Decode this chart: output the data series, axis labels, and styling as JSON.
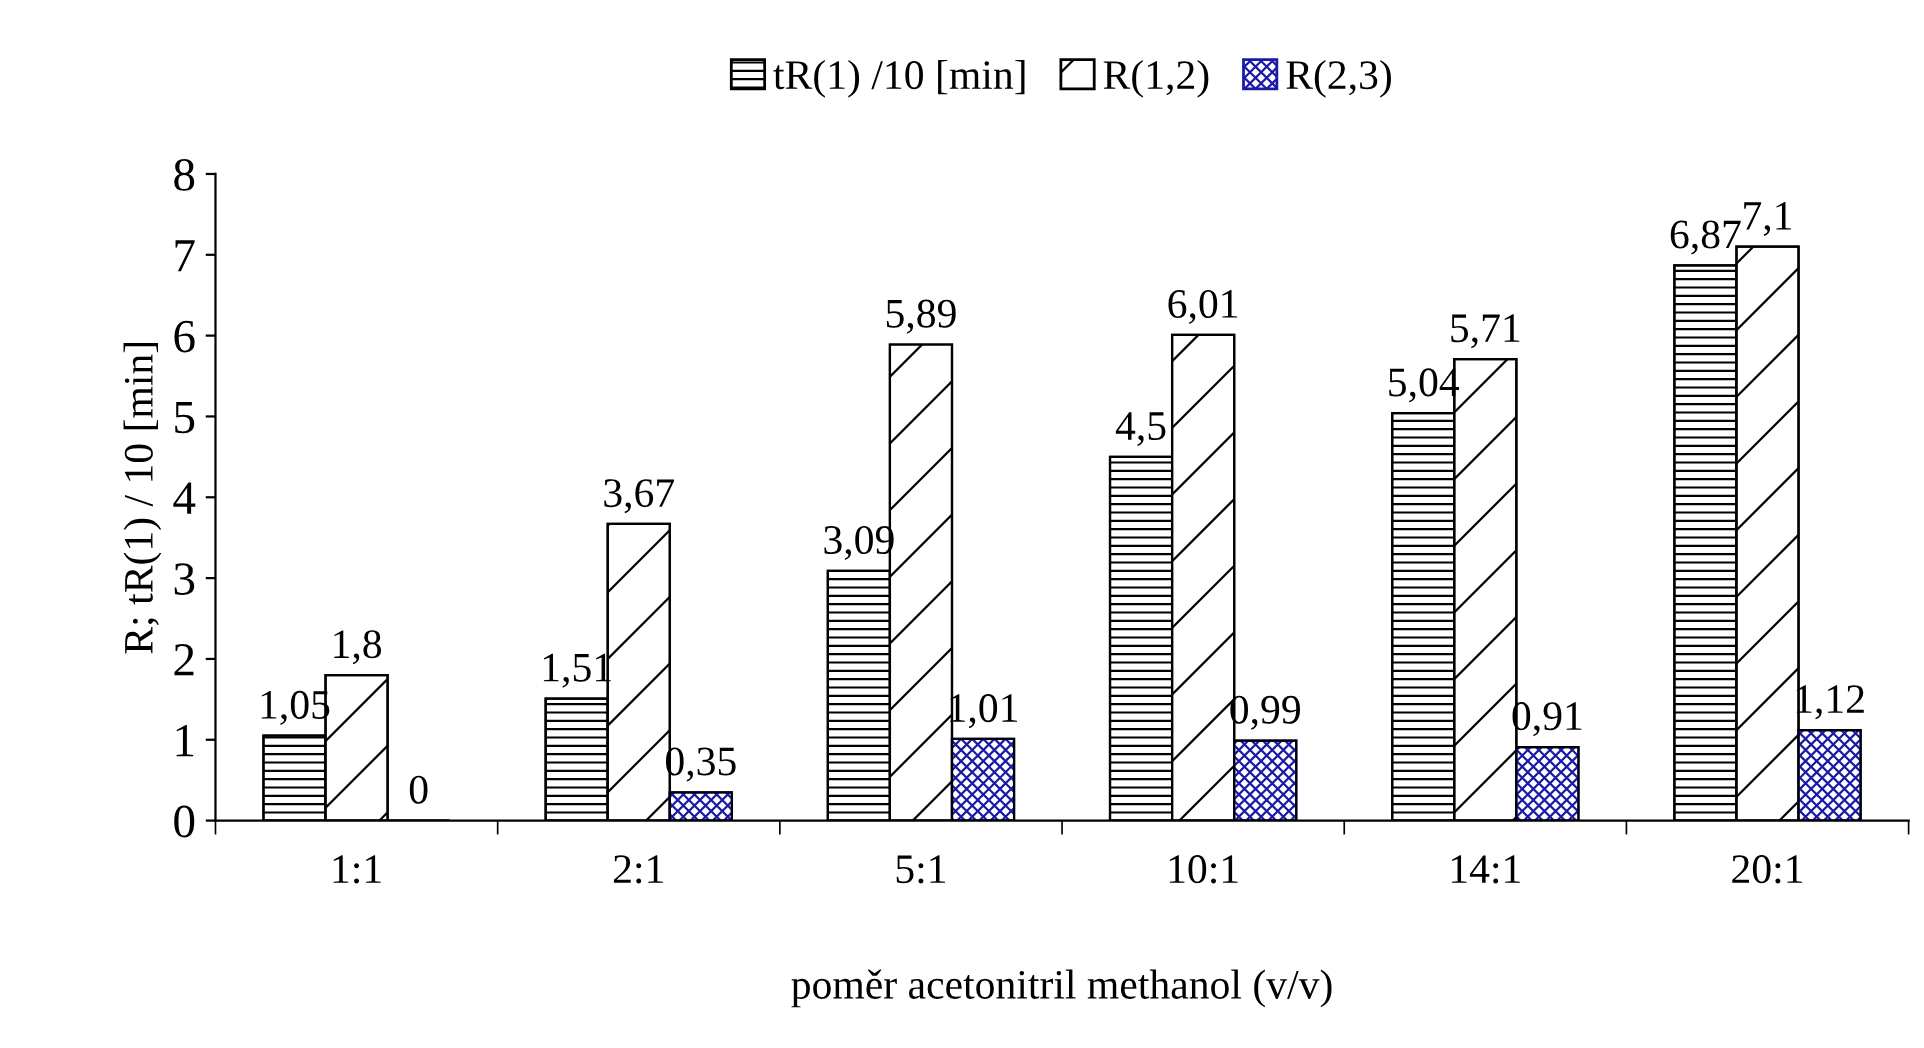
{
  "chart_data": {
    "type": "bar",
    "xlabel": "poměr acetonitril methanol (v/v)",
    "ylabel": "R; tR(1) / 10 [min]",
    "categories": [
      "1:1",
      "2:1",
      "5:1",
      "10:1",
      "14:1",
      "20:1"
    ],
    "series": [
      {
        "name": "tR(1) /10 [min]",
        "color": "#000000",
        "values": [
          1.05,
          1.51,
          3.09,
          4.5,
          5.04,
          6.87
        ],
        "value_labels": [
          "1,05",
          "1,51",
          "3,09",
          "4,5",
          "5,04",
          "6,87"
        ]
      },
      {
        "name": "R(1,2)",
        "color": "#000000",
        "values": [
          1.8,
          3.67,
          5.89,
          6.01,
          5.71,
          7.1
        ],
        "value_labels": [
          "1,8",
          "3,67",
          "5,89",
          "6,01",
          "5,71",
          "7,1"
        ]
      },
      {
        "name": "R(2,3)",
        "color": "#1a1aa6",
        "values": [
          0,
          0.35,
          1.01,
          0.99,
          0.91,
          1.12
        ],
        "value_labels": [
          "0",
          "0,35",
          "1,01",
          "0,99",
          "0,91",
          "1,12"
        ]
      }
    ],
    "ylim": [
      0,
      8
    ],
    "yticks": [
      0,
      1,
      2,
      3,
      4,
      5,
      6,
      7,
      8
    ],
    "grid": false,
    "legend": "top"
  }
}
